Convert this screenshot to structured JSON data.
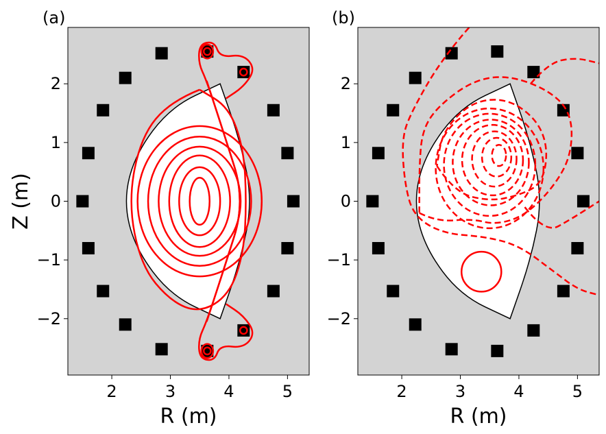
{
  "chart_data": [
    {
      "type": "contour",
      "panel_label": "(a)",
      "xlabel": "R (m)",
      "ylabel": "Z (m)",
      "xlim": [
        1.25,
        5.37
      ],
      "ylim": [
        -2.96,
        2.96
      ],
      "xticks": [
        2,
        3,
        4,
        5
      ],
      "yticks": [
        -2,
        -1,
        0,
        1,
        2
      ],
      "background_color": "#d3d3d3",
      "contour_color": "#ff0000",
      "contour_style": "solid",
      "vessel_boundary": {
        "inner_arc": [
          [
            3.85,
            2.0
          ],
          [
            3.0,
            1.6
          ],
          [
            2.4,
            0.8
          ],
          [
            2.2,
            0.0
          ],
          [
            2.4,
            -0.8
          ],
          [
            3.0,
            -1.6
          ],
          [
            3.85,
            -2.0
          ]
        ],
        "outer_arc": [
          [
            3.85,
            2.0
          ],
          [
            4.2,
            1.0
          ],
          [
            4.4,
            0.0
          ],
          [
            4.2,
            -1.0
          ],
          [
            3.85,
            -2.0
          ]
        ]
      },
      "coils": [
        [
          2.85,
          2.52
        ],
        [
          3.63,
          2.55
        ],
        [
          4.25,
          2.2
        ],
        [
          4.76,
          1.55
        ],
        [
          5.0,
          0.82
        ],
        [
          5.1,
          0.0
        ],
        [
          5.0,
          -0.8
        ],
        [
          4.76,
          -1.53
        ],
        [
          4.25,
          -2.2
        ],
        [
          3.63,
          -2.55
        ],
        [
          2.85,
          -2.52
        ],
        [
          2.23,
          -2.1
        ],
        [
          1.85,
          -1.53
        ],
        [
          1.6,
          -0.8
        ],
        [
          1.5,
          0.0
        ],
        [
          1.6,
          0.82
        ],
        [
          1.85,
          1.55
        ],
        [
          2.23,
          2.1
        ]
      ],
      "flux_contours": [
        {
          "type": "ellipse",
          "center": [
            3.5,
            0.0
          ],
          "rx": 0.17,
          "ry": 0.4
        },
        {
          "type": "ellipse",
          "center": [
            3.5,
            0.0
          ],
          "rx": 0.35,
          "ry": 0.58
        },
        {
          "type": "ellipse",
          "center": [
            3.5,
            0.0
          ],
          "rx": 0.52,
          "ry": 0.78
        },
        {
          "type": "ellipse",
          "center": [
            3.5,
            0.0
          ],
          "rx": 0.7,
          "ry": 0.93
        },
        {
          "type": "ellipse",
          "center": [
            3.5,
            0.0
          ],
          "rx": 0.88,
          "ry": 1.1
        },
        {
          "type": "ellipse",
          "center": [
            3.5,
            0.0
          ],
          "rx": 1.06,
          "ry": 1.28
        },
        {
          "type": "path",
          "points": [
            [
              3.5,
              1.9
            ],
            [
              3.0,
              1.7
            ],
            [
              2.5,
              1.1
            ],
            [
              2.28,
              0.0
            ],
            [
              2.5,
              -1.1
            ],
            [
              3.0,
              -1.7
            ],
            [
              3.5,
              -1.9
            ],
            [
              4.0,
              -1.6
            ],
            [
              4.25,
              -0.9
            ],
            [
              4.3,
              0.0
            ],
            [
              4.25,
              0.9
            ],
            [
              4.0,
              1.6
            ],
            [
              3.5,
              1.9
            ]
          ]
        },
        {
          "type": "separatrix",
          "points": [
            [
              3.62,
              -2.05
            ],
            [
              3.9,
              -1.2
            ],
            [
              4.28,
              0.0
            ],
            [
              3.9,
              1.2
            ],
            [
              3.62,
              2.05
            ],
            [
              3.48,
              2.35
            ],
            [
              3.5,
              2.68
            ],
            [
              3.75,
              2.72
            ],
            [
              3.85,
              2.45
            ],
            [
              4.25,
              2.5
            ],
            [
              4.45,
              2.25
            ],
            [
              4.25,
              1.95
            ],
            [
              3.95,
              1.75
            ]
          ]
        },
        {
          "type": "separatrix",
          "points": [
            [
              3.62,
              2.05
            ],
            [
              3.9,
              1.2
            ],
            [
              4.28,
              0.0
            ],
            [
              3.9,
              -1.2
            ],
            [
              3.62,
              -2.05
            ],
            [
              3.48,
              -2.35
            ],
            [
              3.5,
              -2.68
            ],
            [
              3.75,
              -2.72
            ],
            [
              3.85,
              -2.45
            ],
            [
              4.25,
              -2.5
            ],
            [
              4.45,
              -2.25
            ],
            [
              4.25,
              -1.95
            ],
            [
              3.95,
              -1.75
            ]
          ]
        },
        {
          "type": "ellipse",
          "center": [
            3.63,
            2.55
          ],
          "rx": 0.06,
          "ry": 0.06
        },
        {
          "type": "ellipse",
          "center": [
            3.63,
            2.55
          ],
          "rx": 0.1,
          "ry": 0.12
        },
        {
          "type": "ellipse",
          "center": [
            4.25,
            2.2
          ],
          "rx": 0.06,
          "ry": 0.06
        },
        {
          "type": "ellipse",
          "center": [
            3.63,
            -2.55
          ],
          "rx": 0.06,
          "ry": 0.06
        },
        {
          "type": "ellipse",
          "center": [
            3.63,
            -2.55
          ],
          "rx": 0.1,
          "ry": 0.12
        },
        {
          "type": "ellipse",
          "center": [
            4.25,
            -2.2
          ],
          "rx": 0.06,
          "ry": 0.06
        }
      ]
    },
    {
      "type": "contour",
      "panel_label": "(b)",
      "xlabel": "R (m)",
      "ylabel": "",
      "xlim": [
        1.25,
        5.37
      ],
      "ylim": [
        -2.96,
        2.96
      ],
      "xticks": [
        2,
        3,
        4,
        5
      ],
      "yticks": [
        -2,
        -1,
        0,
        1,
        2
      ],
      "background_color": "#d3d3d3",
      "contour_color": "#ff0000",
      "contour_style": "dashed",
      "vessel_boundary": {
        "inner_arc": [
          [
            3.85,
            2.0
          ],
          [
            3.0,
            1.6
          ],
          [
            2.4,
            0.8
          ],
          [
            2.2,
            0.0
          ],
          [
            2.4,
            -0.8
          ],
          [
            3.0,
            -1.6
          ],
          [
            3.85,
            -2.0
          ]
        ],
        "outer_arc": [
          [
            3.85,
            2.0
          ],
          [
            4.2,
            1.0
          ],
          [
            4.4,
            0.0
          ],
          [
            4.2,
            -1.0
          ],
          [
            3.85,
            -2.0
          ]
        ]
      },
      "coils": [
        [
          2.85,
          2.52
        ],
        [
          3.63,
          2.55
        ],
        [
          4.25,
          2.2
        ],
        [
          4.76,
          1.55
        ],
        [
          5.0,
          0.82
        ],
        [
          5.1,
          0.0
        ],
        [
          5.0,
          -0.8
        ],
        [
          4.76,
          -1.53
        ],
        [
          4.25,
          -2.2
        ],
        [
          3.63,
          -2.55
        ],
        [
          2.85,
          -2.52
        ],
        [
          2.23,
          -2.1
        ],
        [
          1.85,
          -1.53
        ],
        [
          1.6,
          -0.8
        ],
        [
          1.5,
          0.0
        ],
        [
          1.6,
          0.82
        ],
        [
          1.85,
          1.55
        ],
        [
          2.23,
          2.1
        ]
      ],
      "flux_contours": [
        {
          "type": "ellipse",
          "center": [
            3.66,
            0.78
          ],
          "rx": 0.12,
          "ry": 0.18,
          "dashed": true
        },
        {
          "type": "ellipse",
          "center": [
            3.62,
            0.75
          ],
          "rx": 0.25,
          "ry": 0.33,
          "dashed": true
        },
        {
          "type": "ellipse",
          "center": [
            3.58,
            0.72
          ],
          "rx": 0.38,
          "ry": 0.47,
          "dashed": true
        },
        {
          "type": "ellipse",
          "center": [
            3.55,
            0.7
          ],
          "rx": 0.52,
          "ry": 0.6,
          "dashed": true
        },
        {
          "type": "ellipse",
          "center": [
            3.52,
            0.66
          ],
          "rx": 0.65,
          "ry": 0.73,
          "dashed": true
        },
        {
          "type": "ellipse",
          "center": [
            3.5,
            0.62
          ],
          "rx": 0.78,
          "ry": 0.87,
          "dashed": true
        },
        {
          "type": "ellipse",
          "center": [
            3.5,
            0.56
          ],
          "rx": 0.92,
          "ry": 1.02,
          "dashed": true
        },
        {
          "type": "path",
          "dashed": true,
          "points": [
            [
              2.6,
              0.6
            ],
            [
              2.9,
              0.15
            ],
            [
              3.5,
              0.0
            ],
            [
              4.0,
              0.1
            ],
            [
              4.4,
              0.3
            ],
            [
              4.5,
              0.9
            ],
            [
              4.3,
              1.4
            ],
            [
              3.8,
              1.75
            ],
            [
              3.2,
              1.7
            ],
            [
              2.7,
              1.2
            ],
            [
              2.6,
              0.6
            ]
          ]
        },
        {
          "type": "path",
          "dashed": true,
          "points": [
            [
              2.3,
              -0.2
            ],
            [
              2.6,
              -0.35
            ],
            [
              3.2,
              -0.3
            ],
            [
              3.6,
              -0.4
            ],
            [
              4.1,
              -0.25
            ],
            [
              4.6,
              0.25
            ],
            [
              4.9,
              0.8
            ],
            [
              4.9,
              1.5
            ],
            [
              4.5,
              1.9
            ],
            [
              3.8,
              2.15
            ],
            [
              3.2,
              2.05
            ],
            [
              2.6,
              1.6
            ],
            [
              2.35,
              1.2
            ],
            [
              2.3,
              0.6
            ],
            [
              2.3,
              -0.2
            ]
          ]
        },
        {
          "type": "path",
          "dashed": true,
          "points": [
            [
              4.1,
              -0.1
            ],
            [
              4.45,
              -0.55
            ],
            [
              4.9,
              -0.3
            ],
            [
              5.37,
              0.0
            ]
          ]
        },
        {
          "type": "path",
          "dashed": true,
          "points": [
            [
              3.15,
              2.96
            ],
            [
              2.7,
              2.45
            ],
            [
              2.15,
              1.5
            ],
            [
              2.0,
              1.05
            ],
            [
              2.05,
              0.3
            ],
            [
              2.2,
              -0.25
            ],
            [
              2.7,
              -0.55
            ],
            [
              3.4,
              -0.6
            ],
            [
              4.0,
              -0.75
            ],
            [
              4.6,
              -1.2
            ],
            [
              5.0,
              -1.5
            ],
            [
              5.37,
              -1.6
            ]
          ]
        },
        {
          "type": "path",
          "dashed": true,
          "points": [
            [
              4.2,
              2.0
            ],
            [
              4.5,
              2.35
            ],
            [
              4.95,
              2.45
            ],
            [
              5.37,
              2.35
            ]
          ]
        },
        {
          "type": "ellipse",
          "center": [
            3.36,
            -1.2
          ],
          "rx": 0.34,
          "ry": 0.34,
          "dashed": false
        }
      ]
    }
  ]
}
